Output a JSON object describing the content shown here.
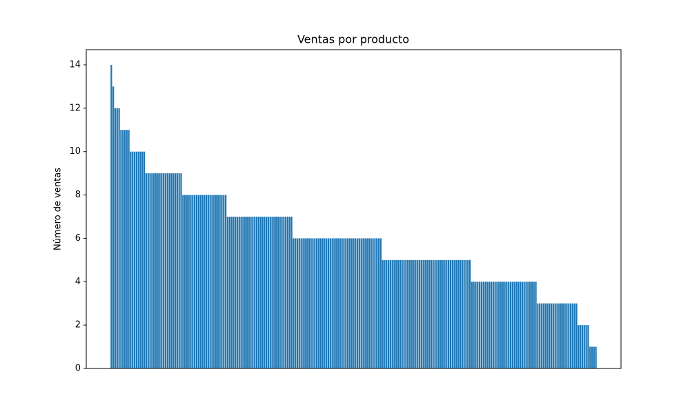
{
  "chart_data": {
    "type": "bar",
    "title": "Ventas por producto",
    "y_label": "Número de ventas",
    "color": "#1f77b4",
    "values": [
      14,
      13,
      12,
      12,
      12,
      11,
      11,
      11,
      11,
      11,
      10,
      10,
      10,
      10,
      10,
      10,
      10,
      10,
      9,
      9,
      9,
      9,
      9,
      9,
      9,
      9,
      9,
      9,
      9,
      9,
      9,
      9,
      9,
      9,
      9,
      9,
      9,
      8,
      8,
      8,
      8,
      8,
      8,
      8,
      8,
      8,
      8,
      8,
      8,
      8,
      8,
      8,
      8,
      8,
      8,
      8,
      8,
      8,
      8,
      8,
      7,
      7,
      7,
      7,
      7,
      7,
      7,
      7,
      7,
      7,
      7,
      7,
      7,
      7,
      7,
      7,
      7,
      7,
      7,
      7,
      7,
      7,
      7,
      7,
      7,
      7,
      7,
      7,
      7,
      7,
      7,
      7,
      7,
      7,
      6,
      6,
      6,
      6,
      6,
      6,
      6,
      6,
      6,
      6,
      6,
      6,
      6,
      6,
      6,
      6,
      6,
      6,
      6,
      6,
      6,
      6,
      6,
      6,
      6,
      6,
      6,
      6,
      6,
      6,
      6,
      6,
      6,
      6,
      6,
      6,
      6,
      6,
      6,
      6,
      6,
      6,
      6,
      6,
      6,
      6,
      5,
      5,
      5,
      5,
      5,
      5,
      5,
      5,
      5,
      5,
      5,
      5,
      5,
      5,
      5,
      5,
      5,
      5,
      5,
      5,
      5,
      5,
      5,
      5,
      5,
      5,
      5,
      5,
      5,
      5,
      5,
      5,
      5,
      5,
      5,
      5,
      5,
      5,
      5,
      5,
      5,
      5,
      5,
      5,
      5,
      5,
      4,
      4,
      4,
      4,
      4,
      4,
      4,
      4,
      4,
      4,
      4,
      4,
      4,
      4,
      4,
      4,
      4,
      4,
      4,
      4,
      4,
      4,
      4,
      4,
      4,
      4,
      4,
      4,
      4,
      4,
      4,
      4,
      4,
      4,
      3,
      3,
      3,
      3,
      3,
      3,
      3,
      3,
      3,
      3,
      3,
      3,
      3,
      3,
      3,
      3,
      3,
      3,
      3,
      3,
      3,
      2,
      2,
      2,
      2,
      2,
      2,
      1,
      1,
      1,
      1
    ],
    "ylim": [
      0,
      14.7
    ],
    "yticks": [
      0,
      2,
      4,
      6,
      8,
      10,
      12,
      14
    ]
  }
}
